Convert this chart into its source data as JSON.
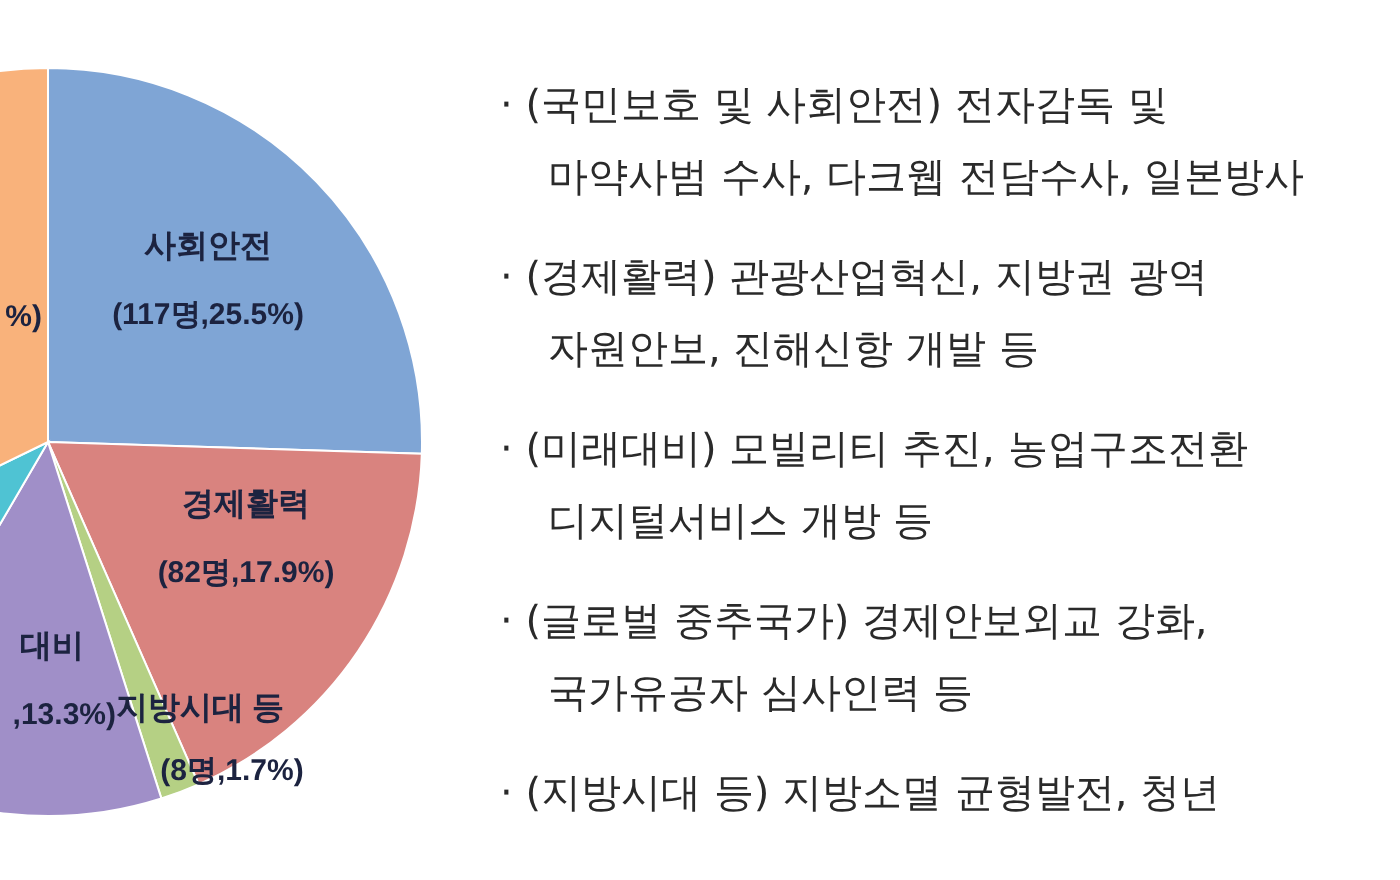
{
  "chart_data": {
    "type": "pie",
    "categories": [
      "사회안전",
      "경제활력",
      "지방시대 등",
      "대비",
      null,
      null
    ],
    "values": [
      25.5,
      17.9,
      1.7,
      13.3,
      9.4,
      32.2
    ],
    "colors": [
      "#7fa5d5",
      "#d9837f",
      "#b5d084",
      "#a08fc8",
      "#4fc3d3",
      "#f9b27b"
    ],
    "value_labels": [
      "(117명,25.5%)",
      "(82명,17.9%)",
      "(8명,1.7%)",
      ",13.3%)",
      null,
      "%)"
    ],
    "annotations": [
      "· (국민보호 및 사회안전) 전자감독 및",
      "마약사범 수사, 다크웹 전담수사, 일본방사",
      "· (경제활력) 관광산업혁신, 지방권 광역",
      "자원안보, 진해신항 개발 등",
      "· (미래대비) 모빌리티 추진, 농업구조전환",
      "디지털서비스 개방 등",
      "· (글로벌 중추국가) 경제안보외교 강화,",
      "국가유공자 심사인력 등",
      "· (지방시대 등) 지방소멸 균형발전, 청년"
    ]
  }
}
